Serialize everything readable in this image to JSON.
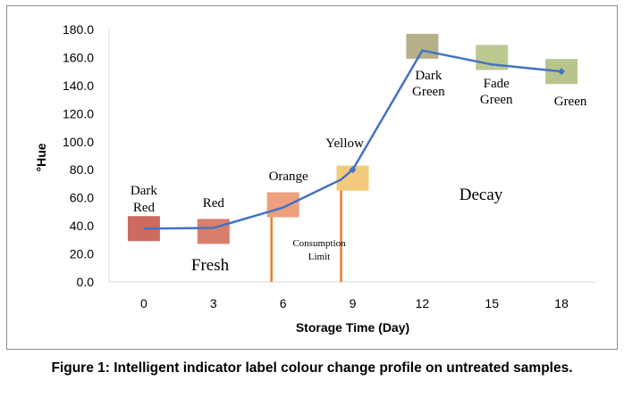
{
  "chart_data": {
    "type": "line",
    "xlabel": "Storage Time (Day)",
    "ylabel": "°Hue",
    "ylim": [
      0,
      180
    ],
    "yticks": [
      "0.0",
      "20.0",
      "40.0",
      "60.0",
      "80.0",
      "100.0",
      "120.0",
      "140.0",
      "160.0",
      "180.0"
    ],
    "categories": [
      "0",
      "3",
      "6",
      "9",
      "12",
      "15",
      "18"
    ],
    "values": [
      38,
      38.5,
      53,
      73,
      80,
      165,
      155,
      150
    ],
    "x": [
      0,
      3,
      6,
      8.5,
      9,
      12,
      15,
      18
    ],
    "series_color": "#4472C4",
    "swatches": [
      {
        "day": 0,
        "hue": 38,
        "color": "#CC6B5E",
        "label_lines": [
          "Dark",
          "Red"
        ]
      },
      {
        "day": 3,
        "hue": 36,
        "color": "#DA7E6C",
        "label_lines": [
          "Red"
        ]
      },
      {
        "day": 6,
        "hue": 55,
        "color": "#EDA07D",
        "label_lines": [
          "Orange"
        ]
      },
      {
        "day": 9,
        "hue": 74,
        "color": "#F2CA7E",
        "label_lines": [
          "Yellow"
        ]
      },
      {
        "day": 12,
        "hue": 168,
        "color": "#B5B08A",
        "label_lines": [
          "Dark",
          "Green"
        ]
      },
      {
        "day": 15,
        "hue": 160,
        "color": "#BBC991",
        "label_lines": [
          "Fade",
          "Green"
        ]
      },
      {
        "day": 18,
        "hue": 150,
        "color": "#B7C58C",
        "label_lines": [
          "Green"
        ]
      }
    ],
    "vertical_lines": [
      {
        "day": 5.5,
        "color": "#ED7D31"
      },
      {
        "day": 8.5,
        "color": "#ED7D31"
      }
    ],
    "annotations": {
      "fresh": "Fresh",
      "decay": "Decay",
      "consumption_line1": "Consumption",
      "consumption_line2": "Limit"
    }
  },
  "caption": "Figure 1: Intelligent indicator label colour change profile on untreated samples."
}
